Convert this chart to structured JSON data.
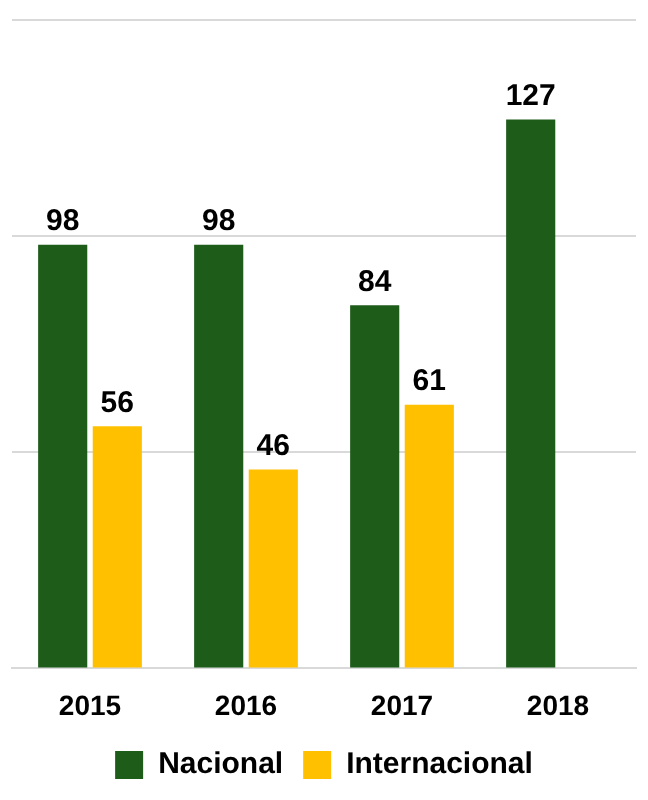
{
  "chart_data": {
    "type": "bar",
    "categories": [
      "2015",
      "2016",
      "2017",
      "2018"
    ],
    "series": [
      {
        "name": "Nacional",
        "color": "#1e5c1a",
        "values": [
          98,
          98,
          84,
          127
        ]
      },
      {
        "name": "Internacional",
        "color": "#ffc000",
        "values": [
          56,
          46,
          61,
          null
        ]
      }
    ],
    "ylim": [
      0,
      150
    ],
    "yticks": [
      {
        "value": 0,
        "label": null
      },
      {
        "value": 50,
        "label": null
      },
      {
        "value": 100,
        "label": null
      },
      {
        "value": 150,
        "label": null
      }
    ],
    "grid": "y",
    "tick_labels": "x",
    "legend": "bottom",
    "data_labels": true
  }
}
